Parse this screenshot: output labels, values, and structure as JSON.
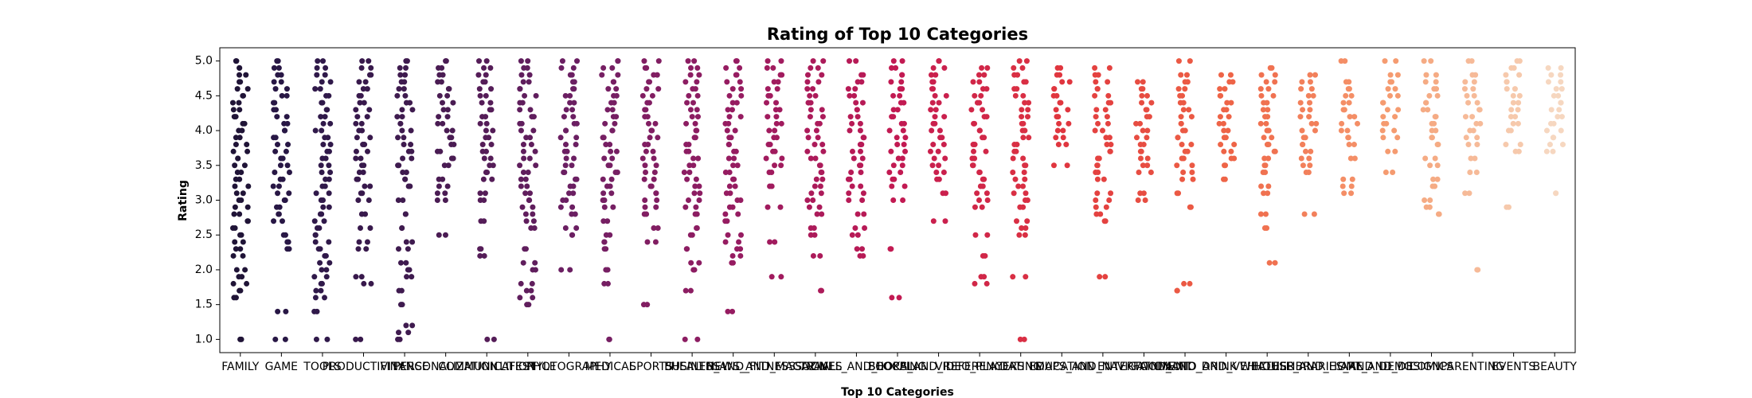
{
  "chart_data": {
    "type": "strip",
    "title": "Rating of Top 10 Categories",
    "x_label": "Top 10 Categories",
    "y_label": "Rating",
    "categories": [
      "FAMILY",
      "GAME",
      "TOOLS",
      "PRODUCTIVITY",
      "FINANCE",
      "PERSONALIZATION",
      "COMMUNICATION",
      "LIFESTYLE",
      "PHOTOGRAPHY",
      "MEDICAL",
      "SPORTS",
      "BUSINESS",
      "HEALTH_AND_FITNESS",
      "NEWS_AND_MAGAZINES",
      "SOCIAL",
      "TRAVEL_AND_LOCAL",
      "SHOPPING",
      "BOOKS_AND_REFERENCE",
      "VIDEO_PLAYERS",
      "DATING",
      "EDUCATION",
      "MAPS_AND_NAVIGATION",
      "ENTERTAINMENT",
      "FOOD_AND_DRINK",
      "AUTO_AND_VEHICLES",
      "WEATHER",
      "HOUSE_AND_HOME",
      "LIBRARIES_AND_DEMO",
      "ART_AND_DESIGN",
      "COMICS",
      "PARENTING",
      "EVENTS",
      "BEAUTY"
    ],
    "colors": [
      "#201437",
      "#281745",
      "#30194a",
      "#38194c",
      "#3f1b4f",
      "#4a1c53",
      "#551d58",
      "#601e5d",
      "#6b1f62",
      "#761f63",
      "#811e62",
      "#8c1d62",
      "#961c61",
      "#a11b5e",
      "#ac1b5a",
      "#b71a56",
      "#c21a52",
      "#ca204d",
      "#d12748",
      "#d92f44",
      "#e0363f",
      "#e44240",
      "#e74d42",
      "#eb5944",
      "#ee6447",
      "#f07251",
      "#f2805b",
      "#f48e66",
      "#f59b70",
      "#f5ab84",
      "#f6ba98",
      "#f6c9ac",
      "#f6d7c0"
    ],
    "values": [
      [
        1.0,
        1.6,
        1.7,
        1.8,
        1.9,
        2.0,
        2.2,
        2.3,
        2.4,
        2.5,
        2.6,
        2.7,
        2.8,
        2.9,
        3.0,
        3.1,
        3.2,
        3.3,
        3.4,
        3.5,
        3.6,
        3.7,
        3.8,
        3.9,
        4.0,
        4.1,
        4.2,
        4.3,
        4.4,
        4.5,
        4.6,
        4.7,
        4.8,
        4.9,
        5.0
      ],
      [
        1.0,
        1.4,
        2.3,
        2.4,
        2.5,
        2.7,
        2.8,
        2.9,
        3.0,
        3.1,
        3.2,
        3.3,
        3.4,
        3.5,
        3.6,
        3.7,
        3.8,
        3.9,
        4.0,
        4.1,
        4.2,
        4.3,
        4.4,
        4.5,
        4.6,
        4.7,
        4.8,
        4.9,
        5.0
      ],
      [
        1.0,
        1.4,
        1.6,
        1.7,
        1.8,
        1.9,
        2.0,
        2.1,
        2.2,
        2.3,
        2.4,
        2.5,
        2.6,
        2.7,
        2.8,
        2.9,
        3.0,
        3.1,
        3.2,
        3.3,
        3.4,
        3.5,
        3.6,
        3.7,
        3.8,
        3.9,
        4.0,
        4.1,
        4.2,
        4.3,
        4.4,
        4.5,
        4.6,
        4.7,
        4.8,
        4.9,
        5.0
      ],
      [
        1.0,
        1.8,
        1.9,
        2.3,
        2.4,
        2.6,
        2.8,
        3.0,
        3.1,
        3.2,
        3.3,
        3.4,
        3.5,
        3.6,
        3.7,
        3.8,
        3.9,
        4.0,
        4.1,
        4.2,
        4.3,
        4.4,
        4.5,
        4.6,
        4.7,
        4.8,
        4.9,
        5.0
      ],
      [
        1.0,
        1.1,
        1.2,
        1.5,
        1.7,
        1.9,
        2.0,
        2.1,
        2.3,
        2.4,
        2.6,
        2.8,
        3.0,
        3.2,
        3.3,
        3.4,
        3.5,
        3.6,
        3.7,
        3.8,
        3.9,
        4.0,
        4.1,
        4.2,
        4.3,
        4.4,
        4.5,
        4.6,
        4.7,
        4.8,
        4.9,
        5.0
      ],
      [
        2.5,
        3.0,
        3.1,
        3.2,
        3.3,
        3.5,
        3.6,
        3.7,
        3.8,
        3.9,
        4.0,
        4.1,
        4.2,
        4.3,
        4.4,
        4.5,
        4.6,
        4.7,
        4.8,
        4.9,
        5.0
      ],
      [
        1.0,
        2.2,
        2.3,
        2.7,
        3.0,
        3.1,
        3.3,
        3.4,
        3.5,
        3.6,
        3.7,
        3.8,
        3.9,
        4.0,
        4.1,
        4.2,
        4.3,
        4.4,
        4.5,
        4.6,
        4.7,
        4.8,
        4.9,
        5.0
      ],
      [
        1.5,
        1.6,
        1.7,
        1.8,
        2.0,
        2.1,
        2.3,
        2.6,
        2.7,
        2.8,
        2.9,
        3.0,
        3.1,
        3.2,
        3.3,
        3.4,
        3.5,
        3.6,
        3.7,
        3.8,
        3.9,
        4.0,
        4.1,
        4.2,
        4.3,
        4.4,
        4.5,
        4.6,
        4.7,
        4.8,
        4.9,
        5.0
      ],
      [
        2.0,
        2.5,
        2.6,
        2.8,
        2.9,
        3.0,
        3.1,
        3.2,
        3.3,
        3.4,
        3.5,
        3.6,
        3.7,
        3.8,
        3.9,
        4.0,
        4.1,
        4.2,
        4.3,
        4.4,
        4.5,
        4.6,
        4.7,
        4.8,
        4.9,
        5.0
      ],
      [
        1.0,
        1.8,
        2.0,
        2.3,
        2.4,
        2.5,
        2.7,
        2.9,
        3.0,
        3.1,
        3.2,
        3.3,
        3.4,
        3.5,
        3.6,
        3.7,
        3.8,
        3.9,
        4.0,
        4.1,
        4.2,
        4.3,
        4.4,
        4.5,
        4.6,
        4.7,
        4.8,
        4.9,
        5.0
      ],
      [
        1.5,
        2.4,
        2.6,
        2.8,
        2.9,
        3.0,
        3.1,
        3.2,
        3.3,
        3.4,
        3.5,
        3.6,
        3.7,
        3.8,
        3.9,
        4.0,
        4.1,
        4.2,
        4.3,
        4.4,
        4.5,
        4.6,
        4.7,
        4.8,
        4.9,
        5.0
      ],
      [
        1.0,
        1.7,
        2.0,
        2.1,
        2.3,
        2.5,
        2.6,
        2.8,
        2.9,
        3.0,
        3.1,
        3.2,
        3.3,
        3.4,
        3.5,
        3.6,
        3.7,
        3.8,
        3.9,
        4.0,
        4.1,
        4.2,
        4.3,
        4.4,
        4.5,
        4.6,
        4.7,
        4.8,
        4.9,
        5.0
      ],
      [
        1.4,
        2.1,
        2.2,
        2.3,
        2.4,
        2.5,
        2.7,
        2.8,
        2.9,
        3.0,
        3.1,
        3.2,
        3.3,
        3.4,
        3.5,
        3.6,
        3.7,
        3.8,
        3.9,
        4.0,
        4.1,
        4.2,
        4.3,
        4.4,
        4.5,
        4.6,
        4.7,
        4.8,
        4.9,
        5.0
      ],
      [
        1.9,
        2.4,
        2.9,
        3.2,
        3.4,
        3.5,
        3.6,
        3.7,
        3.8,
        3.9,
        4.0,
        4.1,
        4.2,
        4.3,
        4.4,
        4.5,
        4.6,
        4.7,
        4.8,
        4.9,
        5.0
      ],
      [
        1.7,
        2.2,
        2.5,
        2.6,
        2.8,
        2.9,
        3.0,
        3.1,
        3.2,
        3.3,
        3.4,
        3.5,
        3.6,
        3.7,
        3.8,
        3.9,
        4.0,
        4.1,
        4.2,
        4.3,
        4.4,
        4.5,
        4.6,
        4.7,
        4.8,
        4.9,
        5.0
      ],
      [
        2.2,
        2.3,
        2.5,
        2.6,
        2.8,
        3.0,
        3.1,
        3.2,
        3.3,
        3.4,
        3.5,
        3.6,
        3.7,
        3.8,
        3.9,
        4.0,
        4.1,
        4.2,
        4.3,
        4.4,
        4.5,
        4.6,
        4.7,
        4.8,
        5.0
      ],
      [
        1.6,
        2.3,
        3.0,
        3.2,
        3.3,
        3.4,
        3.5,
        3.6,
        3.7,
        3.8,
        3.9,
        4.0,
        4.1,
        4.2,
        4.3,
        4.4,
        4.5,
        4.6,
        4.7,
        4.8,
        4.9,
        5.0
      ],
      [
        2.7,
        3.1,
        3.3,
        3.4,
        3.5,
        3.6,
        3.7,
        3.8,
        3.9,
        4.0,
        4.1,
        4.2,
        4.3,
        4.4,
        4.5,
        4.6,
        4.7,
        4.8,
        4.9,
        5.0
      ],
      [
        1.8,
        1.9,
        2.2,
        2.5,
        2.9,
        3.0,
        3.1,
        3.2,
        3.3,
        3.4,
        3.5,
        3.6,
        3.7,
        3.8,
        3.9,
        4.0,
        4.1,
        4.2,
        4.3,
        4.4,
        4.5,
        4.6,
        4.7,
        4.8,
        4.9
      ],
      [
        1.0,
        1.9,
        2.5,
        2.6,
        2.7,
        2.9,
        3.0,
        3.1,
        3.2,
        3.3,
        3.4,
        3.5,
        3.6,
        3.7,
        3.8,
        3.9,
        4.0,
        4.1,
        4.2,
        4.3,
        4.4,
        4.5,
        4.6,
        4.7,
        4.8,
        4.9,
        5.0
      ],
      [
        3.5,
        3.8,
        3.9,
        4.0,
        4.1,
        4.2,
        4.3,
        4.4,
        4.5,
        4.6,
        4.7,
        4.8,
        4.9
      ],
      [
        1.9,
        2.7,
        2.8,
        2.9,
        3.0,
        3.1,
        3.3,
        3.4,
        3.5,
        3.6,
        3.7,
        3.8,
        3.9,
        4.0,
        4.1,
        4.2,
        4.3,
        4.4,
        4.5,
        4.6,
        4.7,
        4.8,
        4.9
      ],
      [
        3.0,
        3.1,
        3.4,
        3.5,
        3.6,
        3.7,
        3.8,
        3.9,
        4.0,
        4.1,
        4.2,
        4.3,
        4.4,
        4.5,
        4.6,
        4.7
      ],
      [
        1.7,
        1.8,
        2.9,
        3.1,
        3.3,
        3.4,
        3.5,
        3.6,
        3.7,
        3.8,
        3.9,
        4.0,
        4.1,
        4.2,
        4.3,
        4.4,
        4.5,
        4.6,
        4.7,
        4.8,
        5.0
      ],
      [
        3.3,
        3.5,
        3.6,
        3.7,
        3.8,
        3.9,
        4.0,
        4.1,
        4.2,
        4.3,
        4.4,
        4.5,
        4.6,
        4.7,
        4.8
      ],
      [
        2.1,
        2.6,
        2.8,
        3.1,
        3.2,
        3.4,
        3.5,
        3.6,
        3.7,
        3.8,
        3.9,
        4.0,
        4.1,
        4.2,
        4.3,
        4.4,
        4.5,
        4.6,
        4.7,
        4.8,
        4.9
      ],
      [
        2.8,
        3.4,
        3.5,
        3.6,
        3.7,
        3.8,
        3.9,
        4.0,
        4.1,
        4.2,
        4.3,
        4.4,
        4.5,
        4.6,
        4.7,
        4.8
      ],
      [
        3.1,
        3.2,
        3.3,
        3.6,
        3.8,
        3.9,
        4.0,
        4.1,
        4.2,
        4.3,
        4.4,
        4.5,
        4.6,
        4.7,
        5.0
      ],
      [
        3.4,
        3.7,
        3.9,
        4.0,
        4.1,
        4.2,
        4.3,
        4.4,
        4.5,
        4.6,
        4.7,
        4.8,
        5.0
      ],
      [
        2.8,
        2.9,
        3.0,
        3.2,
        3.3,
        3.5,
        3.6,
        3.8,
        3.9,
        4.0,
        4.1,
        4.2,
        4.3,
        4.4,
        4.5,
        4.6,
        4.7,
        4.8,
        5.0
      ],
      [
        2.0,
        3.1,
        3.4,
        3.6,
        3.8,
        3.9,
        4.0,
        4.1,
        4.2,
        4.3,
        4.4,
        4.5,
        4.6,
        4.7,
        4.8,
        5.0
      ],
      [
        2.9,
        3.7,
        3.8,
        4.0,
        4.1,
        4.2,
        4.3,
        4.4,
        4.5,
        4.6,
        4.7,
        4.8,
        4.9,
        5.0
      ],
      [
        3.1,
        3.7,
        3.8,
        3.9,
        4.0,
        4.1,
        4.2,
        4.3,
        4.4,
        4.5,
        4.6,
        4.7,
        4.8,
        4.9
      ]
    ],
    "ylim": [
      0.81,
      5.19
    ],
    "yticks": [
      {
        "value": 1,
        "label": "1.0"
      },
      {
        "value": 1.5,
        "label": "1.5"
      },
      {
        "value": 2,
        "label": "2.0"
      },
      {
        "value": 2.5,
        "label": "2.5"
      },
      {
        "value": 3,
        "label": "3.0"
      },
      {
        "value": 3.5,
        "label": "3.5"
      },
      {
        "value": 4,
        "label": "4.0"
      },
      {
        "value": 4.5,
        "label": "4.5"
      },
      {
        "value": 5,
        "label": "5.0"
      }
    ]
  }
}
